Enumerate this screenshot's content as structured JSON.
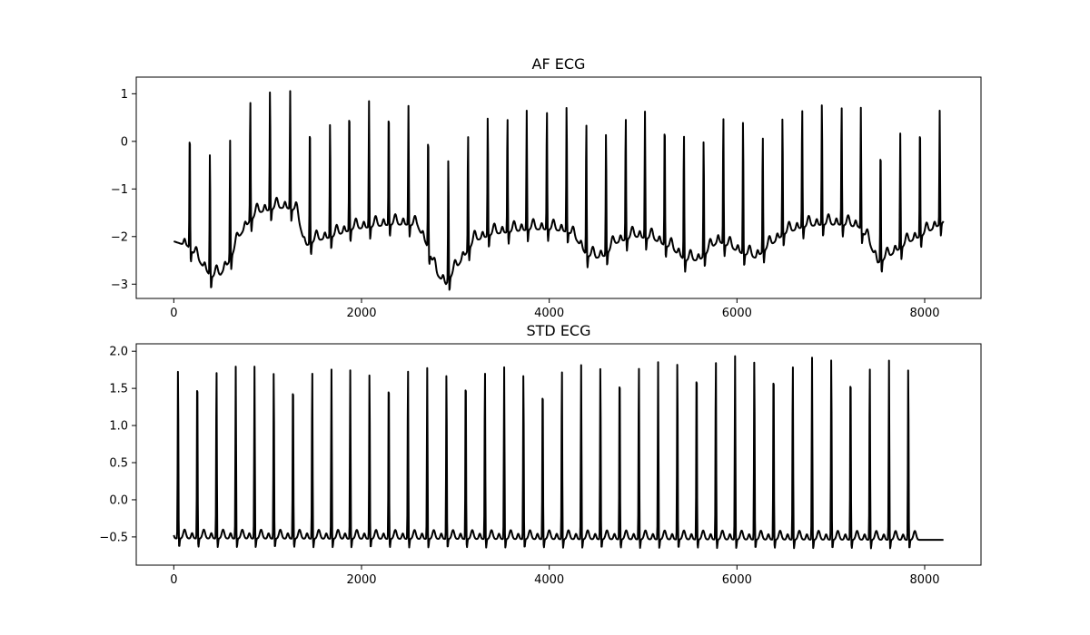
{
  "chart_data": [
    {
      "type": "line",
      "title": "AF ECG",
      "xlabel": "",
      "ylabel": "",
      "xlim": [
        -400,
        8600
      ],
      "ylim": [
        -3.3,
        1.35
      ],
      "xticks": [
        0,
        2000,
        4000,
        6000,
        8000
      ],
      "xtick_labels": [
        "0",
        "2000",
        "4000",
        "6000",
        "8000"
      ],
      "yticks": [
        1,
        0,
        -1,
        -2,
        -3
      ],
      "ytick_labels": [
        "1",
        "0",
        "−1",
        "−2",
        "−3"
      ],
      "grid": false,
      "line_color": "#000000",
      "baseline": [
        [
          0,
          -2.1
        ],
        [
          150,
          -2.2
        ],
        [
          300,
          -2.6
        ],
        [
          400,
          -2.85
        ],
        [
          500,
          -2.8
        ],
        [
          600,
          -2.5
        ],
        [
          700,
          -2.0
        ],
        [
          800,
          -1.7
        ],
        [
          900,
          -1.5
        ],
        [
          1000,
          -1.45
        ],
        [
          1100,
          -1.4
        ],
        [
          1200,
          -1.4
        ],
        [
          1300,
          -1.45
        ],
        [
          1400,
          -2.2
        ],
        [
          1500,
          -2.1
        ],
        [
          1700,
          -2.0
        ],
        [
          1900,
          -1.85
        ],
        [
          2100,
          -1.8
        ],
        [
          2300,
          -1.75
        ],
        [
          2500,
          -1.75
        ],
        [
          2600,
          -1.8
        ],
        [
          2700,
          -2.2
        ],
        [
          2800,
          -2.8
        ],
        [
          2900,
          -3.0
        ],
        [
          3000,
          -2.7
        ],
        [
          3100,
          -2.4
        ],
        [
          3200,
          -2.1
        ],
        [
          3400,
          -1.95
        ],
        [
          3600,
          -1.9
        ],
        [
          3800,
          -1.85
        ],
        [
          4000,
          -1.85
        ],
        [
          4200,
          -1.9
        ],
        [
          4300,
          -2.1
        ],
        [
          4400,
          -2.4
        ],
        [
          4500,
          -2.45
        ],
        [
          4600,
          -2.4
        ],
        [
          4700,
          -2.15
        ],
        [
          4900,
          -2.0
        ],
        [
          5100,
          -2.05
        ],
        [
          5300,
          -2.25
        ],
        [
          5450,
          -2.5
        ],
        [
          5600,
          -2.5
        ],
        [
          5800,
          -2.1
        ],
        [
          5950,
          -2.25
        ],
        [
          6050,
          -2.35
        ],
        [
          6200,
          -2.45
        ],
        [
          6350,
          -2.2
        ],
        [
          6500,
          -1.95
        ],
        [
          6700,
          -1.8
        ],
        [
          6900,
          -1.75
        ],
        [
          7100,
          -1.75
        ],
        [
          7300,
          -1.8
        ],
        [
          7400,
          -2.1
        ],
        [
          7500,
          -2.55
        ],
        [
          7600,
          -2.45
        ],
        [
          7700,
          -2.3
        ],
        [
          7850,
          -2.1
        ],
        [
          8000,
          -1.95
        ],
        [
          8200,
          -1.7
        ]
      ],
      "beats": [
        {
          "x": 170,
          "peak": 0.37
        },
        {
          "x": 385,
          "peak": -0.18
        },
        {
          "x": 600,
          "peak": 0.03
        },
        {
          "x": 815,
          "peak": 0.93
        },
        {
          "x": 1025,
          "peak": 1.14
        },
        {
          "x": 1240,
          "peak": 1.07
        },
        {
          "x": 1450,
          "peak": 0.5
        },
        {
          "x": 1665,
          "peak": 0.45
        },
        {
          "x": 1870,
          "peak": 0.85
        },
        {
          "x": 2080,
          "peak": 0.86
        },
        {
          "x": 2290,
          "peak": 0.81
        },
        {
          "x": 2500,
          "peak": 0.76
        },
        {
          "x": 2710,
          "peak": 0.31
        },
        {
          "x": 2925,
          "peak": -0.3
        },
        {
          "x": 3135,
          "peak": 0.21
        },
        {
          "x": 3345,
          "peak": 0.59
        },
        {
          "x": 3555,
          "peak": 0.57
        },
        {
          "x": 3760,
          "peak": 0.66
        },
        {
          "x": 3975,
          "peak": 0.72
        },
        {
          "x": 4185,
          "peak": 0.82
        },
        {
          "x": 4395,
          "peak": 0.47
        },
        {
          "x": 4605,
          "peak": 0.25
        },
        {
          "x": 4815,
          "peak": 0.58
        },
        {
          "x": 5020,
          "peak": 0.64
        },
        {
          "x": 5230,
          "peak": 0.56
        },
        {
          "x": 5435,
          "peak": 0.23
        },
        {
          "x": 5645,
          "peak": 0.09
        },
        {
          "x": 5855,
          "peak": 0.6
        },
        {
          "x": 6065,
          "peak": 0.51
        },
        {
          "x": 6275,
          "peak": 0.18
        },
        {
          "x": 6485,
          "peak": 0.57
        },
        {
          "x": 6695,
          "peak": 0.76
        },
        {
          "x": 6905,
          "peak": 0.87
        },
        {
          "x": 7115,
          "peak": 0.82
        },
        {
          "x": 7320,
          "peak": 0.72
        },
        {
          "x": 7530,
          "peak": 0.0
        },
        {
          "x": 7740,
          "peak": 0.18
        },
        {
          "x": 7950,
          "peak": 0.47
        },
        {
          "x": 8160,
          "peak": 0.66
        }
      ]
    },
    {
      "type": "line",
      "title": "STD ECG",
      "xlabel": "",
      "ylabel": "",
      "xlim": [
        -400,
        8600
      ],
      "ylim": [
        -0.88,
        2.1
      ],
      "xticks": [
        0,
        2000,
        4000,
        6000,
        8000
      ],
      "xtick_labels": [
        "0",
        "2000",
        "4000",
        "6000",
        "8000"
      ],
      "yticks": [
        2.0,
        1.5,
        1.0,
        0.5,
        0.0,
        -0.5
      ],
      "ytick_labels": [
        "2.0",
        "1.5",
        "1.0",
        "0.5",
        "0.0",
        "−0.5"
      ],
      "grid": false,
      "line_color": "#000000",
      "baseline": [
        [
          0,
          -0.52
        ],
        [
          8200,
          -0.54
        ]
      ],
      "beats": [
        {
          "x": 45,
          "peak": 1.82
        },
        {
          "x": 250,
          "peak": 1.82
        },
        {
          "x": 455,
          "peak": 1.81
        },
        {
          "x": 660,
          "peak": 1.8
        },
        {
          "x": 860,
          "peak": 1.8
        },
        {
          "x": 1065,
          "peak": 1.79
        },
        {
          "x": 1270,
          "peak": 1.77
        },
        {
          "x": 1475,
          "peak": 1.8
        },
        {
          "x": 1680,
          "peak": 1.76
        },
        {
          "x": 1880,
          "peak": 1.75
        },
        {
          "x": 2085,
          "peak": 1.77
        },
        {
          "x": 2290,
          "peak": 1.8
        },
        {
          "x": 2495,
          "peak": 1.83
        },
        {
          "x": 2700,
          "peak": 1.78
        },
        {
          "x": 2905,
          "peak": 1.76
        },
        {
          "x": 3110,
          "peak": 1.83
        },
        {
          "x": 3315,
          "peak": 1.8
        },
        {
          "x": 3520,
          "peak": 1.79
        },
        {
          "x": 3725,
          "peak": 1.76
        },
        {
          "x": 3930,
          "peak": 1.7
        },
        {
          "x": 4135,
          "peak": 1.82
        },
        {
          "x": 4340,
          "peak": 1.82
        },
        {
          "x": 4545,
          "peak": 1.86
        },
        {
          "x": 4750,
          "peak": 1.88
        },
        {
          "x": 4955,
          "peak": 1.87
        },
        {
          "x": 5160,
          "peak": 1.86
        },
        {
          "x": 5365,
          "peak": 1.92
        },
        {
          "x": 5570,
          "peak": 1.96
        },
        {
          "x": 5775,
          "peak": 1.95
        },
        {
          "x": 5980,
          "peak": 1.94
        },
        {
          "x": 6185,
          "peak": 1.95
        },
        {
          "x": 6390,
          "peak": 1.94
        },
        {
          "x": 6595,
          "peak": 1.89
        },
        {
          "x": 6800,
          "peak": 1.92
        },
        {
          "x": 7005,
          "peak": 1.98
        },
        {
          "x": 7210,
          "peak": 1.89
        },
        {
          "x": 7415,
          "peak": 1.86
        },
        {
          "x": 7620,
          "peak": 1.88
        },
        {
          "x": 7825,
          "peak": 1.84
        }
      ]
    }
  ]
}
